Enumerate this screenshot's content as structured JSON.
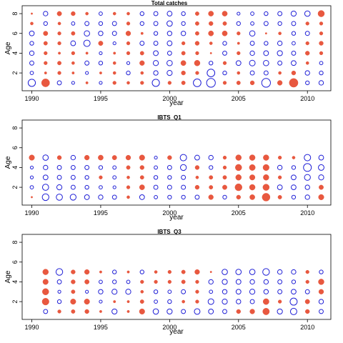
{
  "colors": {
    "positive": "#e8583f",
    "negative": "#1f1fd6",
    "frame": "#000000"
  },
  "chart_data": [
    {
      "type": "scatter",
      "title": "Total catches",
      "xlabel": "year",
      "ylabel": "Age",
      "xlim": [
        1989.3,
        2011.7
      ],
      "ylim": [
        0.2,
        8.8
      ],
      "xticks": [
        1990,
        1995,
        2000,
        2005,
        2010
      ],
      "yticks": [
        2,
        4,
        6,
        8
      ],
      "ages": [
        1,
        2,
        3,
        4,
        5,
        6,
        7,
        8
      ],
      "years": [
        1990,
        1991,
        1992,
        1993,
        1994,
        1995,
        1996,
        1997,
        1998,
        1999,
        2000,
        2001,
        2002,
        2003,
        2004,
        2005,
        2006,
        2007,
        2008,
        2009,
        2010,
        2011
      ],
      "residuals": [
        [
          -1.8,
          2.2,
          -0.6,
          -0.3,
          0.2,
          -0.3,
          0.4,
          0.3,
          0.4,
          -1.8,
          0.4,
          0.5,
          -2.0,
          -2.6,
          0.4,
          0.5,
          0.6,
          -2.6,
          0.8,
          2.6,
          -0.5,
          -0.7
        ],
        [
          -0.4,
          0.2,
          0.4,
          0.2,
          -0.3,
          0.2,
          0.3,
          -0.5,
          0.3,
          -0.7,
          -0.9,
          0.6,
          0.4,
          -2.0,
          -0.5,
          0.3,
          -0.6,
          -0.6,
          0.3,
          0.6,
          -0.7,
          -0.5
        ],
        [
          -0.6,
          0.4,
          0.5,
          0.3,
          -0.6,
          -0.5,
          0.3,
          -0.3,
          0.8,
          -0.9,
          -1.0,
          0.9,
          1.1,
          -0.5,
          0.4,
          -0.8,
          -1.1,
          -1.0,
          -0.6,
          -0.8,
          0.3,
          -0.4
        ],
        [
          -0.7,
          0.4,
          0.2,
          0.4,
          0.2,
          -0.3,
          0.2,
          0.4,
          0.5,
          -0.8,
          -0.6,
          0.5,
          0.4,
          0.1,
          -0.6,
          0.4,
          -0.7,
          -0.8,
          -0.9,
          -0.6,
          0.6,
          0.4
        ],
        [
          -0.5,
          0.5,
          0.4,
          -0.8,
          -1.4,
          0.7,
          -0.3,
          0.4,
          -0.6,
          -0.6,
          -0.8,
          0.4,
          0.6,
          0.3,
          -0.5,
          0.2,
          -0.6,
          -0.5,
          -0.7,
          -0.4,
          0.4,
          0.6
        ],
        [
          -0.8,
          0.7,
          0.4,
          0.5,
          -1.0,
          -0.7,
          -0.6,
          0.8,
          0.2,
          -0.5,
          -0.7,
          -0.7,
          0.5,
          0.9,
          0.9,
          0.4,
          -1.0,
          0.1,
          0.3,
          -0.5,
          -0.6,
          0.4
        ],
        [
          0.3,
          -0.5,
          0.3,
          -0.4,
          -0.6,
          -0.5,
          -0.6,
          0.4,
          -0.5,
          -0.6,
          -1.0,
          -0.5,
          0.5,
          0.6,
          0.5,
          -0.5,
          -0.4,
          -0.6,
          -0.5,
          -0.6,
          0.4,
          0.4
        ],
        [
          0.1,
          -0.7,
          0.7,
          0.6,
          0.3,
          -0.4,
          0.3,
          0.3,
          -0.5,
          -0.6,
          -0.8,
          -0.5,
          0.5,
          0.9,
          0.9,
          -0.3,
          -0.4,
          -0.5,
          -0.6,
          -0.9,
          -1.0,
          1.4
        ]
      ]
    },
    {
      "type": "scatter",
      "title": "IBTS_Q1",
      "xlabel": "year",
      "ylabel": "Age",
      "xlim": [
        1989.3,
        2011.7
      ],
      "ylim": [
        0.2,
        8.8
      ],
      "xticks": [
        1990,
        1995,
        2000,
        2005,
        2010
      ],
      "yticks": [
        2,
        4,
        6,
        8
      ],
      "ages": [
        1,
        2,
        3,
        4,
        5
      ],
      "years": [
        1990,
        1991,
        1992,
        1993,
        1994,
        1995,
        1996,
        1997,
        1998,
        1999,
        2000,
        2001,
        2002,
        2003,
        2004,
        2005,
        2006,
        2007,
        2008,
        2009,
        2010,
        2011
      ],
      "residuals": [
        [
          0.1,
          -1.5,
          -1.3,
          -1.2,
          -0.8,
          -0.7,
          -0.6,
          0.3,
          -0.8,
          -0.4,
          -0.5,
          -0.5,
          -0.6,
          0.8,
          -0.5,
          0.6,
          0.9,
          2.1,
          0.5,
          -0.5,
          -0.7,
          1.0
        ],
        [
          -0.4,
          -1.3,
          -0.9,
          -0.6,
          -0.5,
          -0.4,
          -0.3,
          0.4,
          0.9,
          -0.6,
          -0.6,
          -0.6,
          0.6,
          0.5,
          0.7,
          1.7,
          1.1,
          1.4,
          -0.8,
          -0.8,
          -0.7,
          0.7
        ],
        [
          -0.3,
          -0.8,
          -0.6,
          -0.6,
          -0.5,
          0.4,
          -0.4,
          0.3,
          0.5,
          -0.5,
          -0.5,
          -0.6,
          0.3,
          0.5,
          0.5,
          1.1,
          1.0,
          1.1,
          0.4,
          -0.8,
          -1.2,
          -0.9
        ],
        [
          -0.3,
          -0.7,
          -0.6,
          -0.6,
          -0.6,
          -0.5,
          -0.4,
          0.5,
          0.6,
          -0.4,
          -0.6,
          -1.2,
          0.6,
          -0.5,
          0.4,
          1.4,
          1.2,
          1.3,
          -0.7,
          -0.5,
          -2.1,
          -1.1
        ],
        [
          1.0,
          -1.0,
          0.6,
          -0.7,
          0.8,
          0.9,
          0.7,
          0.8,
          1.0,
          -0.3,
          0.6,
          -1.4,
          -0.8,
          -0.7,
          0.4,
          1.1,
          1.1,
          1.1,
          0.4,
          0.3,
          -1.4,
          -0.8
        ]
      ]
    },
    {
      "type": "scatter",
      "title": "IBTS_Q3",
      "xlabel": "year",
      "ylabel": "Age",
      "xlim": [
        1989.3,
        2011.7
      ],
      "ylim": [
        0.2,
        8.8
      ],
      "xticks": [
        1990,
        1995,
        2000,
        2005,
        2010
      ],
      "yticks": [
        2,
        4,
        6,
        8
      ],
      "ages": [
        1,
        2,
        3,
        4,
        5
      ],
      "years": [
        1991,
        1992,
        1993,
        1994,
        1995,
        1996,
        1997,
        1998,
        1999,
        2000,
        2001,
        2002,
        2003,
        2004,
        2005,
        2006,
        2007,
        2008,
        2009,
        2010,
        2011
      ],
      "residuals": [
        [
          -0.6,
          0.4,
          0.5,
          0.6,
          0.2,
          -0.9,
          0.2,
          1.0,
          -1.0,
          -0.9,
          -0.6,
          -1.1,
          -0.8,
          -0.6,
          0.6,
          0.8,
          1.5,
          -0.9,
          -1.4,
          0.6,
          -0.6
        ],
        [
          1.6,
          -0.5,
          1.0,
          1.0,
          -0.3,
          0.2,
          0.2,
          0.5,
          -0.4,
          -0.5,
          0.3,
          0.4,
          -1.1,
          -0.9,
          -0.7,
          -0.6,
          1.2,
          0.4,
          -1.7,
          0.7,
          -0.7
        ],
        [
          1.4,
          -0.3,
          0.5,
          -0.3,
          -0.7,
          -0.9,
          -0.9,
          0.3,
          -0.5,
          -0.4,
          -0.6,
          0.4,
          -0.4,
          -0.7,
          -0.8,
          -0.9,
          -0.7,
          -0.6,
          -0.8,
          -0.6,
          0.8
        ],
        [
          1.0,
          -0.6,
          0.6,
          0.7,
          -0.4,
          -0.5,
          -0.4,
          0.4,
          0.4,
          0.4,
          0.5,
          0.4,
          -0.7,
          -0.9,
          -0.8,
          -0.7,
          -0.7,
          -0.6,
          -0.5,
          0.4,
          1.1
        ],
        [
          1.1,
          -1.5,
          0.6,
          0.8,
          0.2,
          -0.5,
          0.2,
          -0.5,
          0.3,
          0.4,
          0.5,
          0.8,
          0.1,
          -1.0,
          -1.0,
          -1.0,
          -1.5,
          -0.7,
          -0.7,
          0.4,
          -0.5
        ]
      ]
    }
  ]
}
